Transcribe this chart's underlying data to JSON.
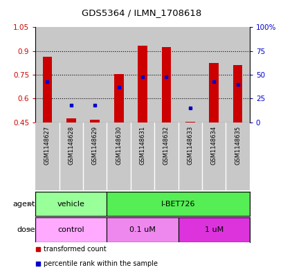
{
  "title": "GDS5364 / ILMN_1708618",
  "samples": [
    "GSM1148627",
    "GSM1148628",
    "GSM1148629",
    "GSM1148630",
    "GSM1148631",
    "GSM1148632",
    "GSM1148633",
    "GSM1148634",
    "GSM1148635"
  ],
  "transformed_counts": [
    0.865,
    0.475,
    0.465,
    0.755,
    0.935,
    0.925,
    0.455,
    0.825,
    0.81
  ],
  "percentile_ranks_pct": [
    43,
    18,
    18,
    37,
    48,
    48,
    15,
    43,
    40
  ],
  "ylim_left": [
    0.45,
    1.05
  ],
  "ylim_right": [
    0,
    100
  ],
  "yticks_left": [
    0.45,
    0.6,
    0.75,
    0.9,
    1.05
  ],
  "yticks_right": [
    0,
    25,
    50,
    75,
    100
  ],
  "ytick_labels_right": [
    "0",
    "25",
    "50",
    "75",
    "100%"
  ],
  "bar_color": "#cc0000",
  "dot_color": "#0000cc",
  "bar_bottom": 0.45,
  "bar_width": 0.4,
  "agent_vehicle_color": "#99ff99",
  "agent_ibet_color": "#55ee55",
  "dose_control_color": "#ffaaff",
  "dose_01um_color": "#ee88ee",
  "dose_1um_color": "#dd33dd",
  "col_bg_color": "#c8c8c8",
  "legend_red": "transformed count",
  "legend_blue": "percentile rank within the sample",
  "tick_color_left": "#cc0000",
  "tick_color_right": "#0000cc",
  "title_fontsize": 9.5
}
